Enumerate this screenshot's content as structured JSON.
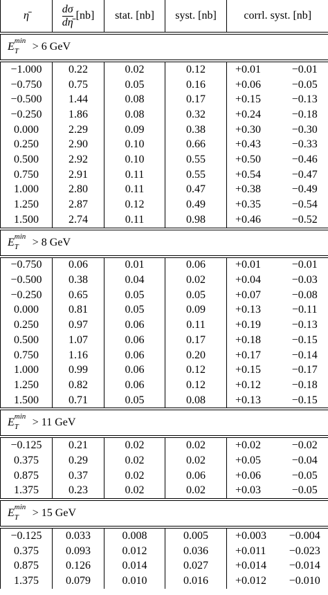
{
  "header": {
    "eta": "η̄",
    "xsec": {
      "numerator": "dσ",
      "denominator": "dη̄",
      "unit": "[nb]"
    },
    "stat": "stat. [nb]",
    "syst": "syst. [nb]",
    "corr": "corrl. syst. [nb]"
  },
  "sections": [
    {
      "label": {
        "symbol": "E",
        "sub": "T",
        "sup": "min",
        "condition": "> 6 GeV"
      },
      "rows": [
        [
          "−1.000",
          "0.22",
          "0.02",
          "0.12",
          "+0.01",
          "−0.01"
        ],
        [
          "−0.750",
          "0.75",
          "0.05",
          "0.16",
          "+0.06",
          "−0.05"
        ],
        [
          "−0.500",
          "1.44",
          "0.08",
          "0.17",
          "+0.15",
          "−0.13"
        ],
        [
          "−0.250",
          "1.86",
          "0.08",
          "0.32",
          "+0.24",
          "−0.18"
        ],
        [
          "0.000",
          "2.29",
          "0.09",
          "0.38",
          "+0.30",
          "−0.30"
        ],
        [
          "0.250",
          "2.90",
          "0.10",
          "0.66",
          "+0.43",
          "−0.33"
        ],
        [
          "0.500",
          "2.92",
          "0.10",
          "0.55",
          "+0.50",
          "−0.46"
        ],
        [
          "0.750",
          "2.91",
          "0.11",
          "0.55",
          "+0.54",
          "−0.47"
        ],
        [
          "1.000",
          "2.80",
          "0.11",
          "0.47",
          "+0.38",
          "−0.49"
        ],
        [
          "1.250",
          "2.87",
          "0.12",
          "0.49",
          "+0.35",
          "−0.54"
        ],
        [
          "1.500",
          "2.74",
          "0.11",
          "0.98",
          "+0.46",
          "−0.52"
        ]
      ]
    },
    {
      "label": {
        "symbol": "E",
        "sub": "T",
        "sup": "min",
        "condition": "> 8 GeV"
      },
      "rows": [
        [
          "−0.750",
          "0.06",
          "0.01",
          "0.06",
          "+0.01",
          "−0.01"
        ],
        [
          "−0.500",
          "0.38",
          "0.04",
          "0.02",
          "+0.04",
          "−0.03"
        ],
        [
          "−0.250",
          "0.65",
          "0.05",
          "0.05",
          "+0.07",
          "−0.08"
        ],
        [
          "0.000",
          "0.81",
          "0.05",
          "0.09",
          "+0.13",
          "−0.11"
        ],
        [
          "0.250",
          "0.97",
          "0.06",
          "0.11",
          "+0.19",
          "−0.13"
        ],
        [
          "0.500",
          "1.07",
          "0.06",
          "0.17",
          "+0.18",
          "−0.15"
        ],
        [
          "0.750",
          "1.16",
          "0.06",
          "0.20",
          "+0.17",
          "−0.14"
        ],
        [
          "1.000",
          "0.99",
          "0.06",
          "0.12",
          "+0.15",
          "−0.17"
        ],
        [
          "1.250",
          "0.82",
          "0.06",
          "0.12",
          "+0.12",
          "−0.18"
        ],
        [
          "1.500",
          "0.71",
          "0.05",
          "0.08",
          "+0.13",
          "−0.15"
        ]
      ]
    },
    {
      "label": {
        "symbol": "E",
        "sub": "T",
        "sup": "min",
        "condition": "> 11 GeV"
      },
      "rows": [
        [
          "−0.125",
          "0.21",
          "0.02",
          "0.02",
          "+0.02",
          "−0.02"
        ],
        [
          "0.375",
          "0.29",
          "0.02",
          "0.02",
          "+0.05",
          "−0.04"
        ],
        [
          "0.875",
          "0.37",
          "0.02",
          "0.06",
          "+0.06",
          "−0.05"
        ],
        [
          "1.375",
          "0.23",
          "0.02",
          "0.02",
          "+0.03",
          "−0.05"
        ]
      ]
    },
    {
      "label": {
        "symbol": "E",
        "sub": "T",
        "sup": "min",
        "condition": "> 15 GeV"
      },
      "rows": [
        [
          "−0.125",
          "0.033",
          "0.008",
          "0.005",
          "+0.003",
          "−0.004"
        ],
        [
          "0.375",
          "0.093",
          "0.012",
          "0.036",
          "+0.011",
          "−0.023"
        ],
        [
          "0.875",
          "0.126",
          "0.014",
          "0.027",
          "+0.014",
          "−0.014"
        ],
        [
          "1.375",
          "0.079",
          "0.010",
          "0.016",
          "+0.012",
          "−0.010"
        ]
      ]
    }
  ]
}
